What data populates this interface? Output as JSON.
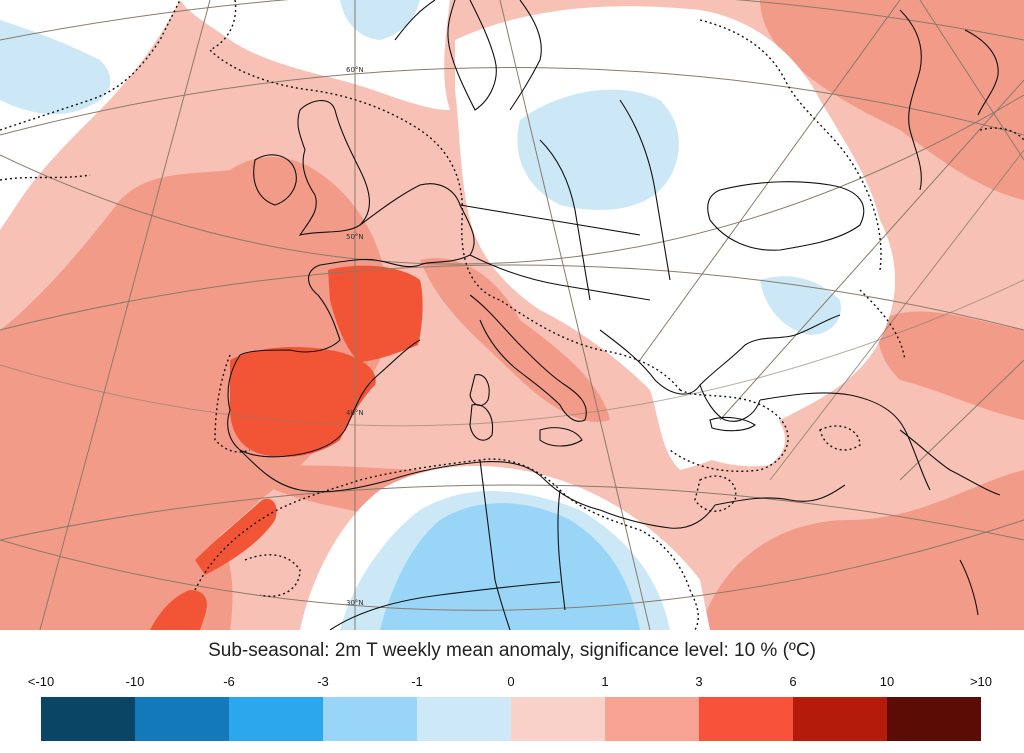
{
  "map": {
    "title": "Sub-seasonal: 2m T weekly mean anomaly, significance level: 10 % (ºC)",
    "latitude_labels": [
      "60°N",
      "50°N",
      "40°N",
      "30°N"
    ],
    "legend": {
      "ticks": [
        "<-10",
        "-10",
        "-6",
        "-3",
        "-1",
        "0",
        "1",
        "3",
        "6",
        "10",
        ">10"
      ],
      "colors": [
        "#0b4566",
        "#1479bb",
        "#2ba7ee",
        "#99d5f7",
        "#cde9f7",
        "#fad1c9",
        "#f8a294",
        "#f9523a",
        "#b41b0b",
        "#5b0c05"
      ]
    },
    "colors": {
      "ocean_warm_light": "#f8c1b5",
      "warm_mid": "#f39b89",
      "warm_strong": "#f25535",
      "neutral": "#ffffff",
      "cool_light": "#cce8f6",
      "cool_mid": "#99d5f7"
    }
  }
}
